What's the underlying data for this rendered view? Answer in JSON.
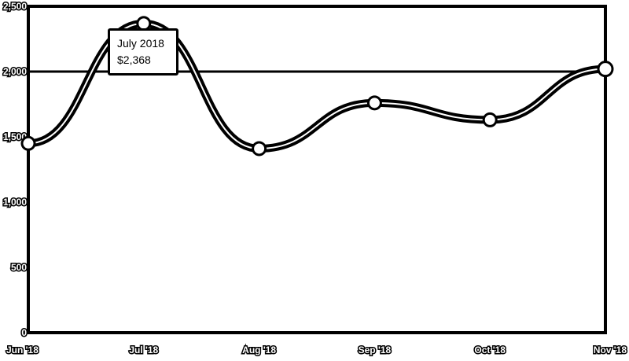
{
  "chart_data": {
    "type": "line",
    "categories": [
      "Jun '18",
      "Jul '18",
      "Aug '18",
      "Sep '18",
      "Oct '18",
      "Nov '18"
    ],
    "series": [
      {
        "values": [
          1450,
          2368,
          1410,
          1760,
          1630,
          2020
        ]
      }
    ],
    "y_ticks": [
      "0",
      "500",
      "1,000",
      "1,500",
      "2,000",
      "2,500"
    ],
    "ylim": [
      0,
      2500
    ],
    "grid": false,
    "colors": {
      "line": "#000000",
      "inner_line": "#ffffff",
      "marker_fill": "#ffffff",
      "marker_stroke": "#000000",
      "axis": "#000000"
    }
  },
  "tooltip": {
    "title": "July 2018",
    "value": "$2,368"
  }
}
